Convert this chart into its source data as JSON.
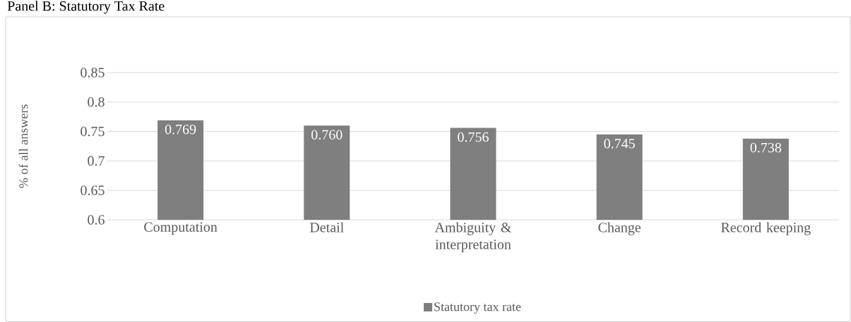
{
  "chart_data": {
    "type": "bar",
    "title": "Panel B: Statutory Tax Rate",
    "ylabel": "% of all answers",
    "categories": [
      "Computation",
      "Detail",
      "Ambiguity & interpretation",
      "Change",
      "Record keeping"
    ],
    "series": [
      {
        "name": "Statutory tax rate",
        "color": "#7f7f7f",
        "values": [
          0.769,
          0.76,
          0.756,
          0.745,
          0.738
        ],
        "value_labels": [
          "0.769",
          "0.760",
          "0.756",
          "0.745",
          "0.738"
        ]
      }
    ],
    "ylim": [
      0.6,
      0.85
    ],
    "yticks": [
      0.6,
      0.65,
      0.7,
      0.75,
      0.8,
      0.85
    ],
    "grid": "y",
    "legend": "bottom"
  }
}
